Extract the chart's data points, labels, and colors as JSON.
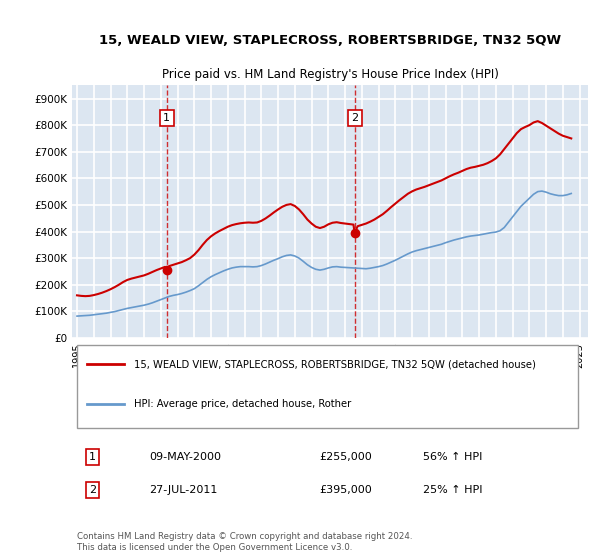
{
  "title": "15, WEALD VIEW, STAPLECROSS, ROBERTSBRIDGE, TN32 5QW",
  "subtitle": "Price paid vs. HM Land Registry's House Price Index (HPI)",
  "ylabel_ticks": [
    "£0",
    "£100K",
    "£200K",
    "£300K",
    "£400K",
    "£500K",
    "£600K",
    "£700K",
    "£800K",
    "£900K"
  ],
  "ytick_values": [
    0,
    100000,
    200000,
    300000,
    400000,
    500000,
    600000,
    700000,
    800000,
    900000
  ],
  "ylim": [
    0,
    950000
  ],
  "xlim_start": 1995.0,
  "xlim_end": 2025.5,
  "background_color": "#dce6f1",
  "plot_bg_color": "#dce6f1",
  "grid_color": "#ffffff",
  "red_line_color": "#cc0000",
  "blue_line_color": "#6699cc",
  "purchase_marker_color": "#cc0000",
  "purchase1_x": 2000.36,
  "purchase1_y": 255000,
  "purchase1_label": "1",
  "purchase2_x": 2011.57,
  "purchase2_y": 395000,
  "purchase2_label": "2",
  "legend_label_red": "15, WEALD VIEW, STAPLECROSS, ROBERTSBRIDGE, TN32 5QW (detached house)",
  "legend_label_blue": "HPI: Average price, detached house, Rother",
  "annotation1_date": "09-MAY-2000",
  "annotation1_price": "£255,000",
  "annotation1_hpi": "56% ↑ HPI",
  "annotation2_date": "27-JUL-2011",
  "annotation2_price": "£395,000",
  "annotation2_hpi": "25% ↑ HPI",
  "footer": "Contains HM Land Registry data © Crown copyright and database right 2024.\nThis data is licensed under the Open Government Licence v3.0.",
  "hpi_years": [
    1995.0,
    1995.25,
    1995.5,
    1995.75,
    1996.0,
    1996.25,
    1996.5,
    1996.75,
    1997.0,
    1997.25,
    1997.5,
    1997.75,
    1998.0,
    1998.25,
    1998.5,
    1998.75,
    1999.0,
    1999.25,
    1999.5,
    1999.75,
    2000.0,
    2000.25,
    2000.5,
    2000.75,
    2001.0,
    2001.25,
    2001.5,
    2001.75,
    2002.0,
    2002.25,
    2002.5,
    2002.75,
    2003.0,
    2003.25,
    2003.5,
    2003.75,
    2004.0,
    2004.25,
    2004.5,
    2004.75,
    2005.0,
    2005.25,
    2005.5,
    2005.75,
    2006.0,
    2006.25,
    2006.5,
    2006.75,
    2007.0,
    2007.25,
    2007.5,
    2007.75,
    2008.0,
    2008.25,
    2008.5,
    2008.75,
    2009.0,
    2009.25,
    2009.5,
    2009.75,
    2010.0,
    2010.25,
    2010.5,
    2010.75,
    2011.0,
    2011.25,
    2011.5,
    2011.75,
    2012.0,
    2012.25,
    2012.5,
    2012.75,
    2013.0,
    2013.25,
    2013.5,
    2013.75,
    2014.0,
    2014.25,
    2014.5,
    2014.75,
    2015.0,
    2015.25,
    2015.5,
    2015.75,
    2016.0,
    2016.25,
    2016.5,
    2016.75,
    2017.0,
    2017.25,
    2017.5,
    2017.75,
    2018.0,
    2018.25,
    2018.5,
    2018.75,
    2019.0,
    2019.25,
    2019.5,
    2019.75,
    2020.0,
    2020.25,
    2020.5,
    2020.75,
    2021.0,
    2021.25,
    2021.5,
    2021.75,
    2022.0,
    2022.25,
    2022.5,
    2022.75,
    2023.0,
    2023.25,
    2023.5,
    2023.75,
    2024.0,
    2024.25,
    2024.5
  ],
  "hpi_values": [
    82000,
    83000,
    84000,
    85000,
    87000,
    89000,
    91000,
    93000,
    96000,
    99000,
    103000,
    107000,
    111000,
    114000,
    117000,
    120000,
    123000,
    127000,
    132000,
    138000,
    144000,
    150000,
    156000,
    160000,
    163000,
    167000,
    172000,
    178000,
    185000,
    196000,
    208000,
    220000,
    230000,
    238000,
    245000,
    252000,
    258000,
    263000,
    266000,
    268000,
    268000,
    268000,
    267000,
    268000,
    272000,
    278000,
    285000,
    292000,
    298000,
    305000,
    310000,
    312000,
    308000,
    300000,
    288000,
    275000,
    265000,
    258000,
    255000,
    258000,
    263000,
    267000,
    268000,
    266000,
    265000,
    264000,
    263000,
    262000,
    261000,
    260000,
    262000,
    265000,
    268000,
    272000,
    278000,
    285000,
    292000,
    300000,
    308000,
    316000,
    323000,
    328000,
    332000,
    336000,
    340000,
    344000,
    348000,
    352000,
    358000,
    363000,
    368000,
    372000,
    376000,
    380000,
    383000,
    385000,
    387000,
    390000,
    393000,
    396000,
    398000,
    403000,
    415000,
    435000,
    455000,
    475000,
    495000,
    510000,
    525000,
    540000,
    550000,
    552000,
    548000,
    542000,
    538000,
    535000,
    535000,
    538000,
    543000
  ],
  "red_years": [
    1995.0,
    1995.25,
    1995.5,
    1995.75,
    1996.0,
    1996.25,
    1996.5,
    1996.75,
    1997.0,
    1997.25,
    1997.5,
    1997.75,
    1998.0,
    1998.25,
    1998.5,
    1998.75,
    1999.0,
    1999.25,
    1999.5,
    1999.75,
    2000.0,
    2000.25,
    2000.36,
    2000.5,
    2000.75,
    2001.0,
    2001.25,
    2001.5,
    2001.75,
    2002.0,
    2002.25,
    2002.5,
    2002.75,
    2003.0,
    2003.25,
    2003.5,
    2003.75,
    2004.0,
    2004.25,
    2004.5,
    2004.75,
    2005.0,
    2005.25,
    2005.5,
    2005.75,
    2006.0,
    2006.25,
    2006.5,
    2006.75,
    2007.0,
    2007.25,
    2007.5,
    2007.75,
    2008.0,
    2008.25,
    2008.5,
    2008.75,
    2009.0,
    2009.25,
    2009.5,
    2009.75,
    2010.0,
    2010.25,
    2010.5,
    2010.75,
    2011.0,
    2011.25,
    2011.5,
    2011.57,
    2011.75,
    2012.0,
    2012.25,
    2012.5,
    2012.75,
    2013.0,
    2013.25,
    2013.5,
    2013.75,
    2014.0,
    2014.25,
    2014.5,
    2014.75,
    2015.0,
    2015.25,
    2015.5,
    2015.75,
    2016.0,
    2016.25,
    2016.5,
    2016.75,
    2017.0,
    2017.25,
    2017.5,
    2017.75,
    2018.0,
    2018.25,
    2018.5,
    2018.75,
    2019.0,
    2019.25,
    2019.5,
    2019.75,
    2020.0,
    2020.25,
    2020.5,
    2020.75,
    2021.0,
    2021.25,
    2021.5,
    2021.75,
    2022.0,
    2022.25,
    2022.5,
    2022.75,
    2023.0,
    2023.25,
    2023.5,
    2023.75,
    2024.0,
    2024.25,
    2024.5
  ],
  "red_values": [
    160000,
    158000,
    157000,
    158000,
    161000,
    165000,
    170000,
    176000,
    183000,
    191000,
    200000,
    210000,
    218000,
    223000,
    227000,
    231000,
    235000,
    241000,
    248000,
    255000,
    261000,
    267000,
    255000,
    270000,
    275000,
    280000,
    285000,
    292000,
    300000,
    313000,
    330000,
    350000,
    368000,
    382000,
    393000,
    402000,
    410000,
    418000,
    424000,
    428000,
    431000,
    433000,
    434000,
    433000,
    434000,
    440000,
    449000,
    460000,
    472000,
    483000,
    493000,
    500000,
    503000,
    496000,
    483000,
    465000,
    445000,
    430000,
    418000,
    413000,
    418000,
    427000,
    433000,
    435000,
    432000,
    430000,
    428000,
    426000,
    395000,
    420000,
    425000,
    430000,
    437000,
    445000,
    455000,
    465000,
    478000,
    492000,
    505000,
    518000,
    530000,
    542000,
    551000,
    558000,
    563000,
    568000,
    574000,
    580000,
    586000,
    592000,
    600000,
    608000,
    615000,
    621000,
    628000,
    635000,
    640000,
    643000,
    647000,
    651000,
    657000,
    665000,
    675000,
    690000,
    710000,
    730000,
    750000,
    770000,
    785000,
    793000,
    800000,
    810000,
    815000,
    808000,
    798000,
    788000,
    778000,
    768000,
    760000,
    755000,
    750000
  ],
  "xtick_years": [
    1995,
    1996,
    1997,
    1998,
    1999,
    2000,
    2001,
    2002,
    2003,
    2004,
    2005,
    2006,
    2007,
    2008,
    2009,
    2010,
    2011,
    2012,
    2013,
    2014,
    2015,
    2016,
    2017,
    2018,
    2019,
    2020,
    2021,
    2022,
    2023,
    2024,
    2025
  ]
}
